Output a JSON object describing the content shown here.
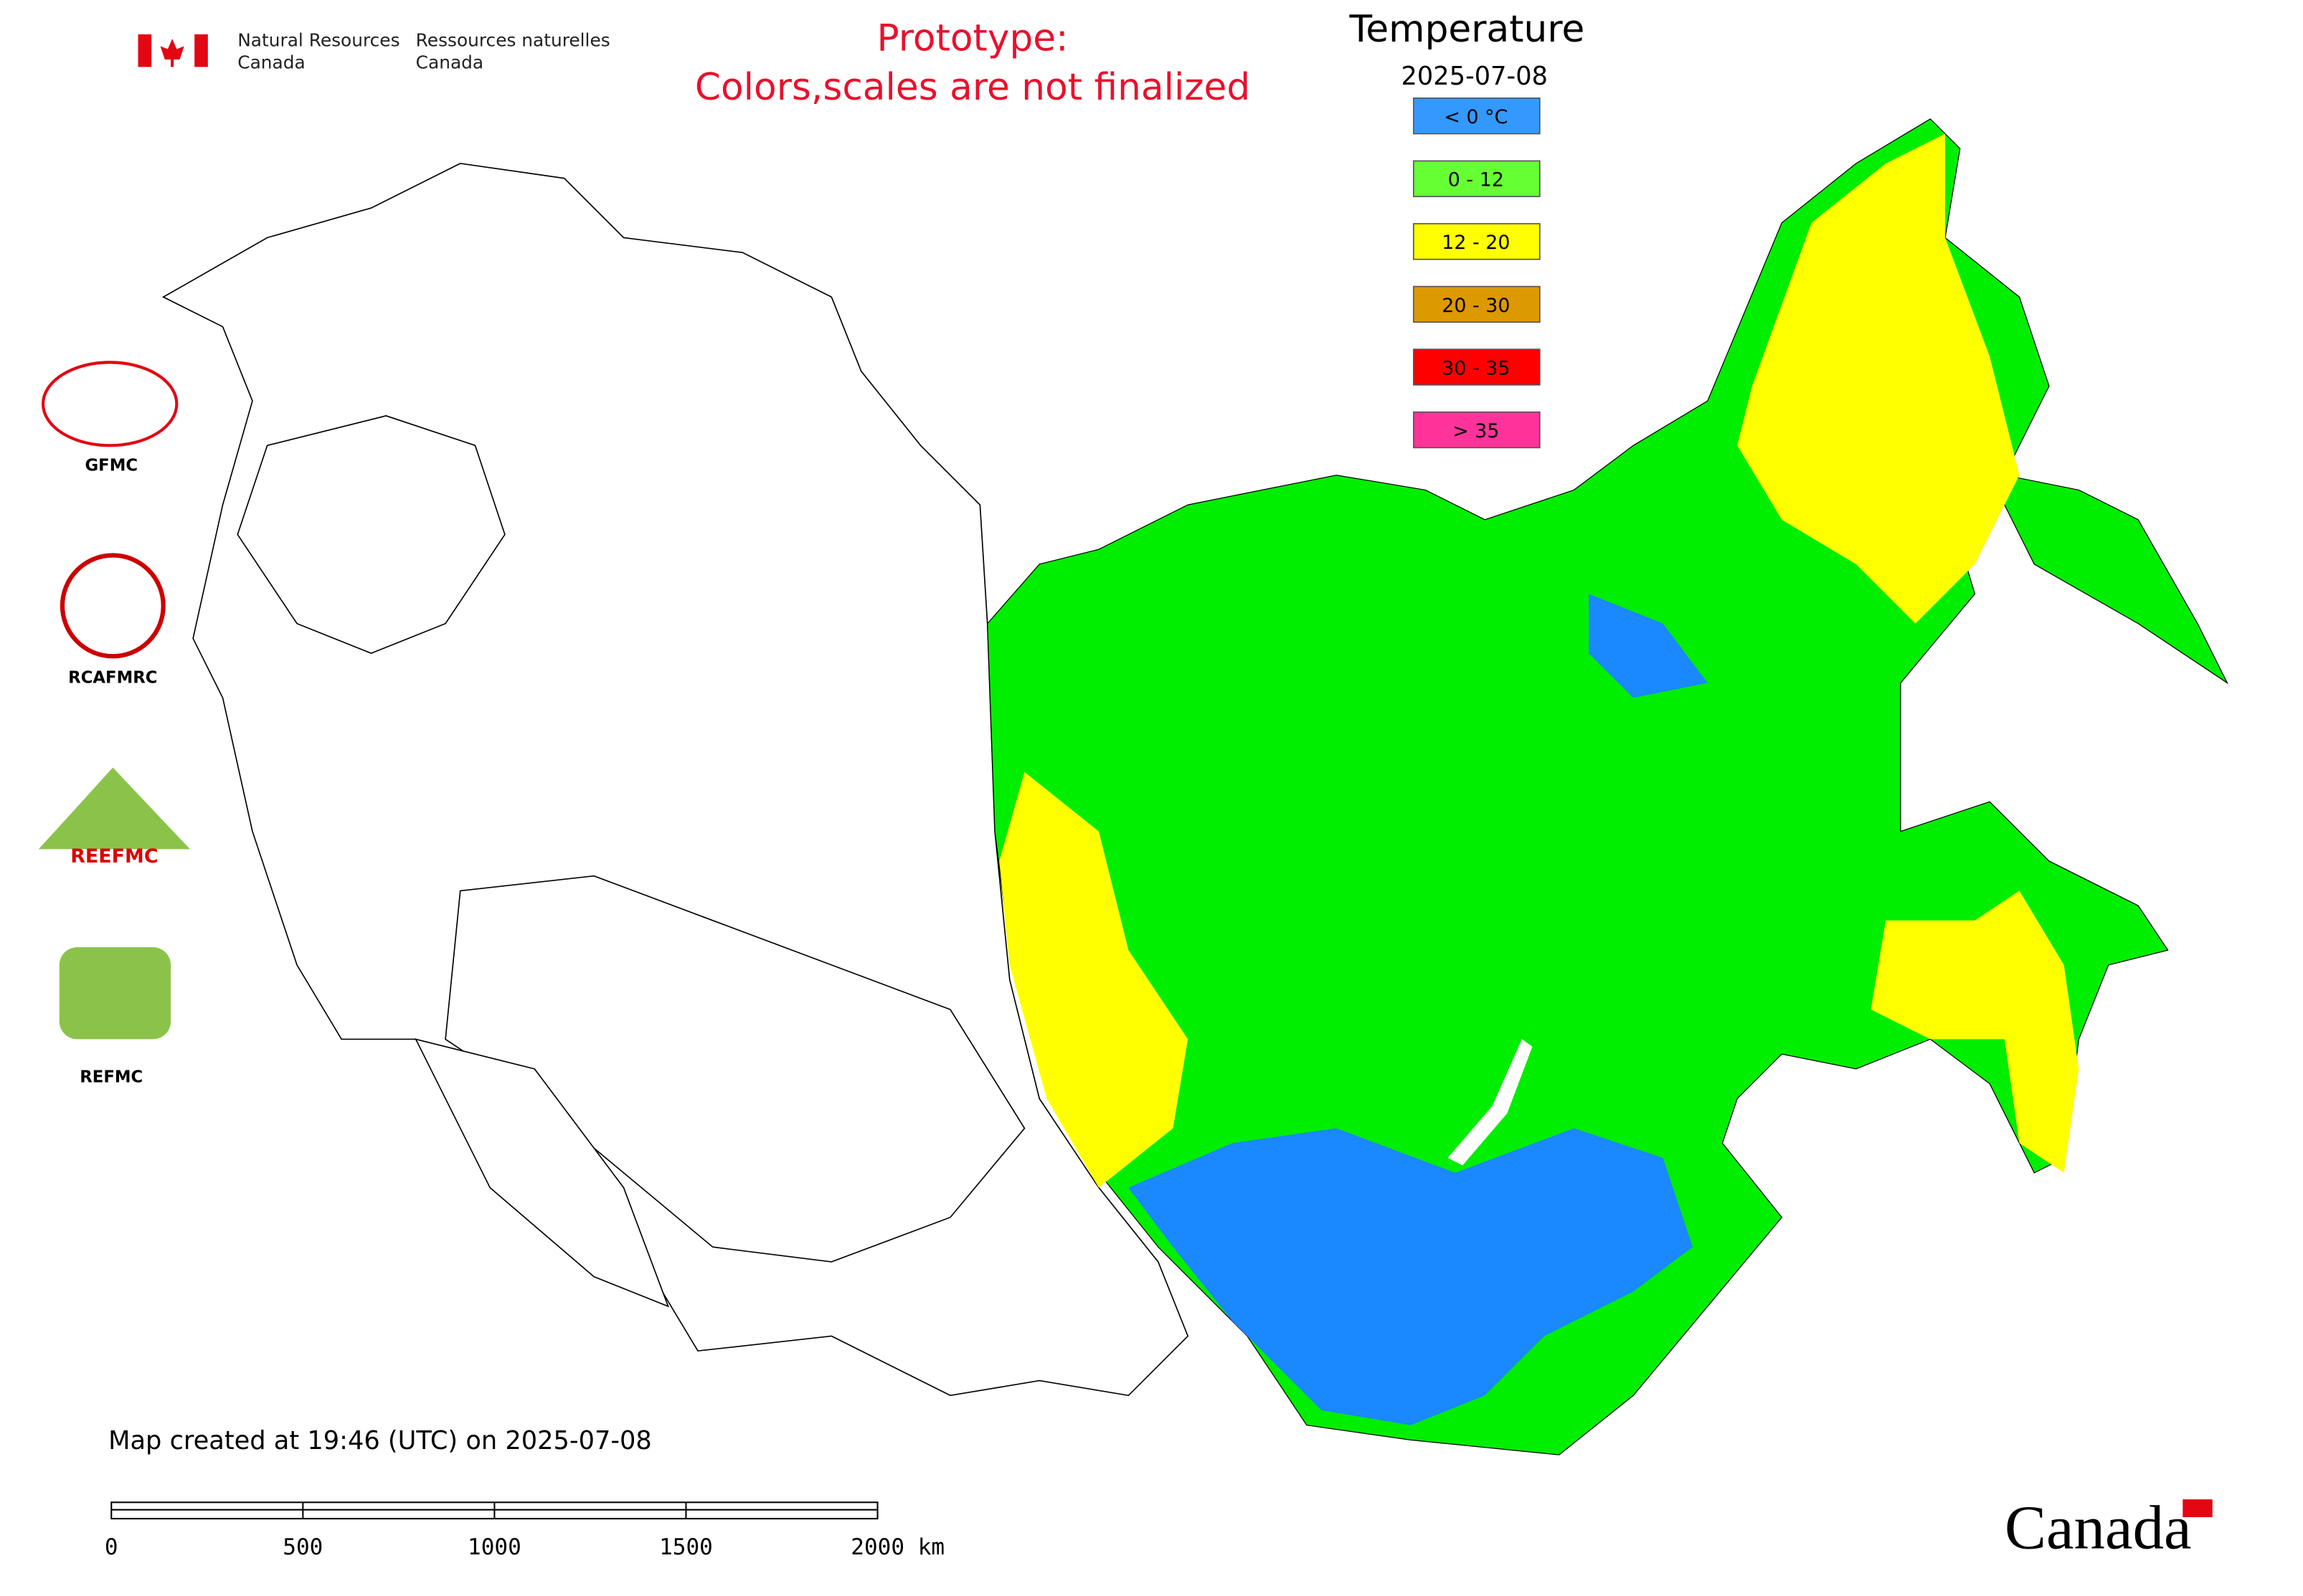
{
  "header": {
    "agency_en_1": "Natural Resources",
    "agency_en_2": "Canada",
    "agency_fr_1": "Ressources naturelles",
    "agency_fr_2": "Canada"
  },
  "notice": {
    "line1": "Prototype:",
    "line2": "Colors,scales are not finalized"
  },
  "legend": {
    "title": "Temperature",
    "date": "2025-07-08",
    "items": [
      {
        "label": "< 0 °C",
        "color": "#3399ff"
      },
      {
        "label": "0 - 12",
        "color": "#66ff33"
      },
      {
        "label": "12 - 20",
        "color": "#ffff00"
      },
      {
        "label": "20 - 30",
        "color": "#dd9900"
      },
      {
        "label": "30 - 35",
        "color": "#ff0000"
      },
      {
        "label": "> 35",
        "color": "#ff3399"
      }
    ]
  },
  "logos": {
    "labels": [
      "GFMC",
      "RCAFMRC",
      "REEFMC",
      "REFMC"
    ]
  },
  "footer": {
    "created": "Map created at 19:46 (UTC) on 2025-07-08",
    "wordmark": "Canada"
  },
  "scale_bar": {
    "ticks": [
      "0",
      "500",
      "1000",
      "1500",
      "2000 km"
    ]
  }
}
